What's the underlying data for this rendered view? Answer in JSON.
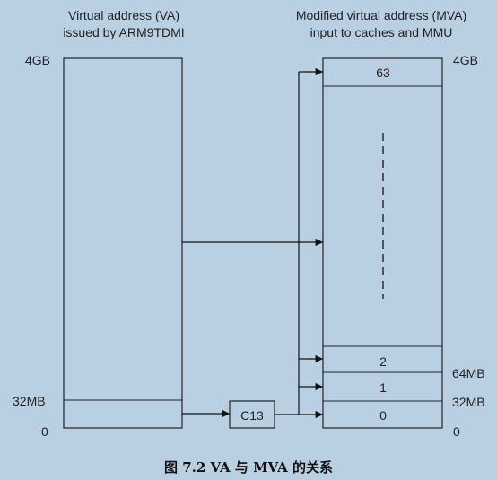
{
  "va": {
    "title_line1": "Virtual address (VA)",
    "title_line2": "issued by ARM9TDMI",
    "label_top": "4GB",
    "label_32mb": "32MB",
    "label_zero": "0"
  },
  "mva": {
    "title_line1": "Modified virtual address (MVA)",
    "title_line2": "input to caches and MMU",
    "label_top": "4GB",
    "label_64mb": "64MB",
    "label_32mb": "32MB",
    "label_zero": "0",
    "blocks": [
      "63",
      "2",
      "1",
      "0"
    ]
  },
  "c13": {
    "label": "C13"
  },
  "caption": "图 7.2   VA 与 MVA 的关系",
  "colors": {
    "background": "#b9cfe2",
    "line": "#111111"
  }
}
